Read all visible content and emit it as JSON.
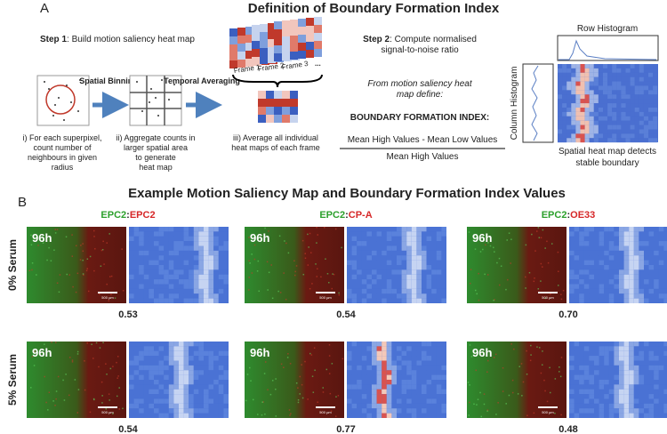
{
  "panel_a": {
    "label": "A",
    "title": "Definition of Boundary Formation Index",
    "step1": {
      "label": "Step 1",
      "text": ": Build motion saliency heat map"
    },
    "arrows": [
      "Spatial Binning",
      "Temporal Averaging"
    ],
    "frames": [
      "Frame 1",
      "Frame 2",
      "Frame 3",
      "..."
    ],
    "captions": [
      [
        "i) For each superpixel,",
        "count number of",
        "neighbours in given",
        "radius"
      ],
      [
        "ii) Aggregate counts in",
        "larger spatial area",
        "to generate",
        "heat map"
      ],
      [
        "iii) Average all individual",
        "heat maps of each frame"
      ]
    ],
    "step2": {
      "label": "Step 2",
      "text": ": Compute normalised",
      "text2": "signal-to-noise ratio"
    },
    "definition": [
      "From motion saliency heat",
      "map define:"
    ],
    "index_label": "BOUNDARY FORMATION INDEX:",
    "numerator": "Mean High Values - Mean Low Values",
    "denominator": "Mean High Values",
    "row_histogram": "Row Histogram",
    "column_histogram": "Column Histogram",
    "heatmap_caption": [
      "Spatial heat map detects",
      "stable boundary"
    ]
  },
  "panel_b": {
    "label": "B",
    "title": "Example Motion Saliency Map and Boundary Formation Index Values",
    "columns": [
      {
        "green": "EPC2",
        "separator": ":",
        "red": "EPC2"
      },
      {
        "green": "EPC2",
        "separator": ":",
        "red": "CP-A"
      },
      {
        "green": "EPC2",
        "separator": ":",
        "red": "OE33"
      }
    ],
    "rows": [
      {
        "label": "0% Serum",
        "cells": [
          {
            "time": "96h",
            "scale": "500 µm",
            "index": "0.53"
          },
          {
            "time": "96h",
            "scale": "500 µm",
            "index": "0.54"
          },
          {
            "time": "96h",
            "scale": "500 µm",
            "index": "0.70"
          }
        ]
      },
      {
        "label": "5% Serum",
        "cells": [
          {
            "time": "96h",
            "scale": "500 µm",
            "index": "0.54"
          },
          {
            "time": "96h",
            "scale": "500 µm",
            "index": "0.77"
          },
          {
            "time": "96h",
            "scale": "500 µm",
            "index": "0.48"
          }
        ]
      }
    ]
  }
}
